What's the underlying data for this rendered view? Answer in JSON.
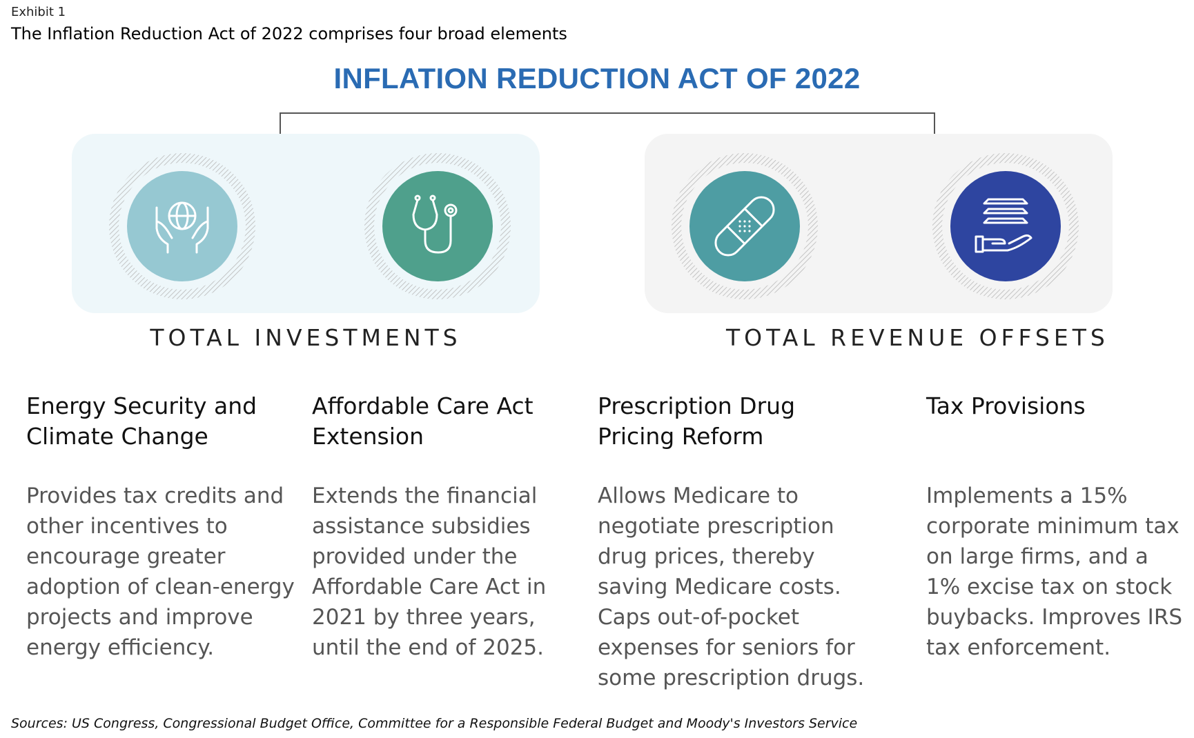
{
  "exhibit": {
    "label": "Exhibit 1",
    "title": "The Inflation Reduction Act of 2022 comprises four broad elements"
  },
  "diagram": {
    "title": "INFLATION REDUCTION ACT OF 2022",
    "groups": [
      {
        "label": "TOTAL INVESTMENTS"
      },
      {
        "label": "TOTAL REVENUE OFFSETS"
      }
    ],
    "elements": [
      {
        "title": "Energy Security and Climate Change",
        "description": "Provides tax credits and other incentives to encourage greater adoption of clean-energy projects and improve energy efficiency.",
        "icon": "hands-globe-icon",
        "color": "#96c8d2"
      },
      {
        "title": "Affordable Care Act Extension",
        "description": "Extends the financial assistance subsidies provided under the Affordable Care Act in 2021 by three years, until the end of 2025.",
        "icon": "stethoscope-icon",
        "color": "#4fa08c"
      },
      {
        "title": "Prescription Drug Pricing Reform",
        "description": "Allows Medicare to negotiate prescription drug prices, thereby saving Medicare costs. Caps out-of-pocket expenses for seniors for some prescription drugs.",
        "icon": "bandage-icon",
        "color": "#4e9da3"
      },
      {
        "title": "Tax Provisions",
        "description": "Implements a 15% corporate minimum tax on large firms, and a 1% excise tax on stock buybacks. Improves IRS tax enforcement.",
        "icon": "hand-money-icon",
        "color": "#2e45a0"
      }
    ]
  },
  "sources": "Sources: US Congress, Congressional Budget Office, Committee for a Responsible Federal Budget and Moody's Investors Service"
}
